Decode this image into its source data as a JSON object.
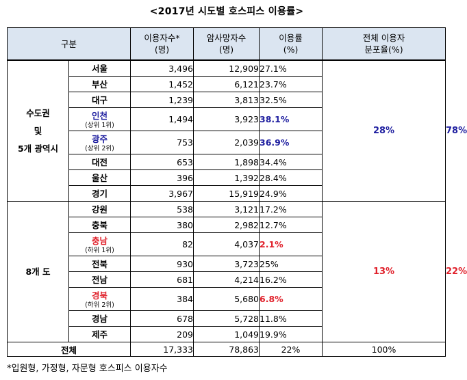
{
  "title": "<2017년 시도별 호스피스 이용률>",
  "headers": {
    "category": "구분",
    "users": "이용자수*\n(명)",
    "deaths": "암사망자수\n(명)",
    "rate": "이용률\n(%)",
    "share": "전체 이용자\n분포율(%)"
  },
  "groups": [
    {
      "label": "수도권\n및\n5개 광역시",
      "rate": "28%",
      "share": "78%",
      "color": "#1f1fa0",
      "rows": [
        {
          "city": "서울",
          "sub": "",
          "users": "3,496",
          "deaths": "12,909",
          "rate": "27.1%",
          "hl": ""
        },
        {
          "city": "부산",
          "sub": "",
          "users": "1,452",
          "deaths": "6,121",
          "rate": "23.7%",
          "hl": ""
        },
        {
          "city": "대구",
          "sub": "",
          "users": "1,239",
          "deaths": "3,813",
          "rate": "32.5%",
          "hl": ""
        },
        {
          "city": "인천",
          "sub": "(상위 1위)",
          "users": "1,494",
          "deaths": "3,923",
          "rate": "38.1%",
          "hl": "blue"
        },
        {
          "city": "광주",
          "sub": "(상위 2위)",
          "users": "753",
          "deaths": "2,039",
          "rate": "36.9%",
          "hl": "blue"
        },
        {
          "city": "대전",
          "sub": "",
          "users": "653",
          "deaths": "1,898",
          "rate": "34.4%",
          "hl": ""
        },
        {
          "city": "울산",
          "sub": "",
          "users": "396",
          "deaths": "1,392",
          "rate": "28.4%",
          "hl": ""
        },
        {
          "city": "경기",
          "sub": "",
          "users": "3,967",
          "deaths": "15,919",
          "rate": "24.9%",
          "hl": ""
        }
      ]
    },
    {
      "label": "8개 도",
      "rate": "13%",
      "share": "22%",
      "color": "#e0202a",
      "rows": [
        {
          "city": "강원",
          "sub": "",
          "users": "538",
          "deaths": "3,121",
          "rate": "17.2%",
          "hl": ""
        },
        {
          "city": "충북",
          "sub": "",
          "users": "380",
          "deaths": "2,982",
          "rate": "12.7%",
          "hl": ""
        },
        {
          "city": "충남",
          "sub": "(하위 1위)",
          "users": "82",
          "deaths": "4,037",
          "rate": "2.1%",
          "hl": "red"
        },
        {
          "city": "전북",
          "sub": "",
          "users": "930",
          "deaths": "3,723",
          "rate": "25%",
          "hl": ""
        },
        {
          "city": "전남",
          "sub": "",
          "users": "681",
          "deaths": "4,214",
          "rate": "16.2%",
          "hl": ""
        },
        {
          "city": "경북",
          "sub": "(하위 2위)",
          "users": "384",
          "deaths": "5,680",
          "rate": "6.8%",
          "hl": "red"
        },
        {
          "city": "경남",
          "sub": "",
          "users": "678",
          "deaths": "5,728",
          "rate": "11.8%",
          "hl": ""
        },
        {
          "city": "제주",
          "sub": "",
          "users": "209",
          "deaths": "1,049",
          "rate": "19.9%",
          "hl": ""
        }
      ]
    }
  ],
  "total": {
    "label": "전체",
    "users": "17,333",
    "deaths": "78,863",
    "rate": "22%",
    "share": "100%"
  },
  "footnote": "*입원형, 가정형, 자문형 호스피스 이용자수"
}
